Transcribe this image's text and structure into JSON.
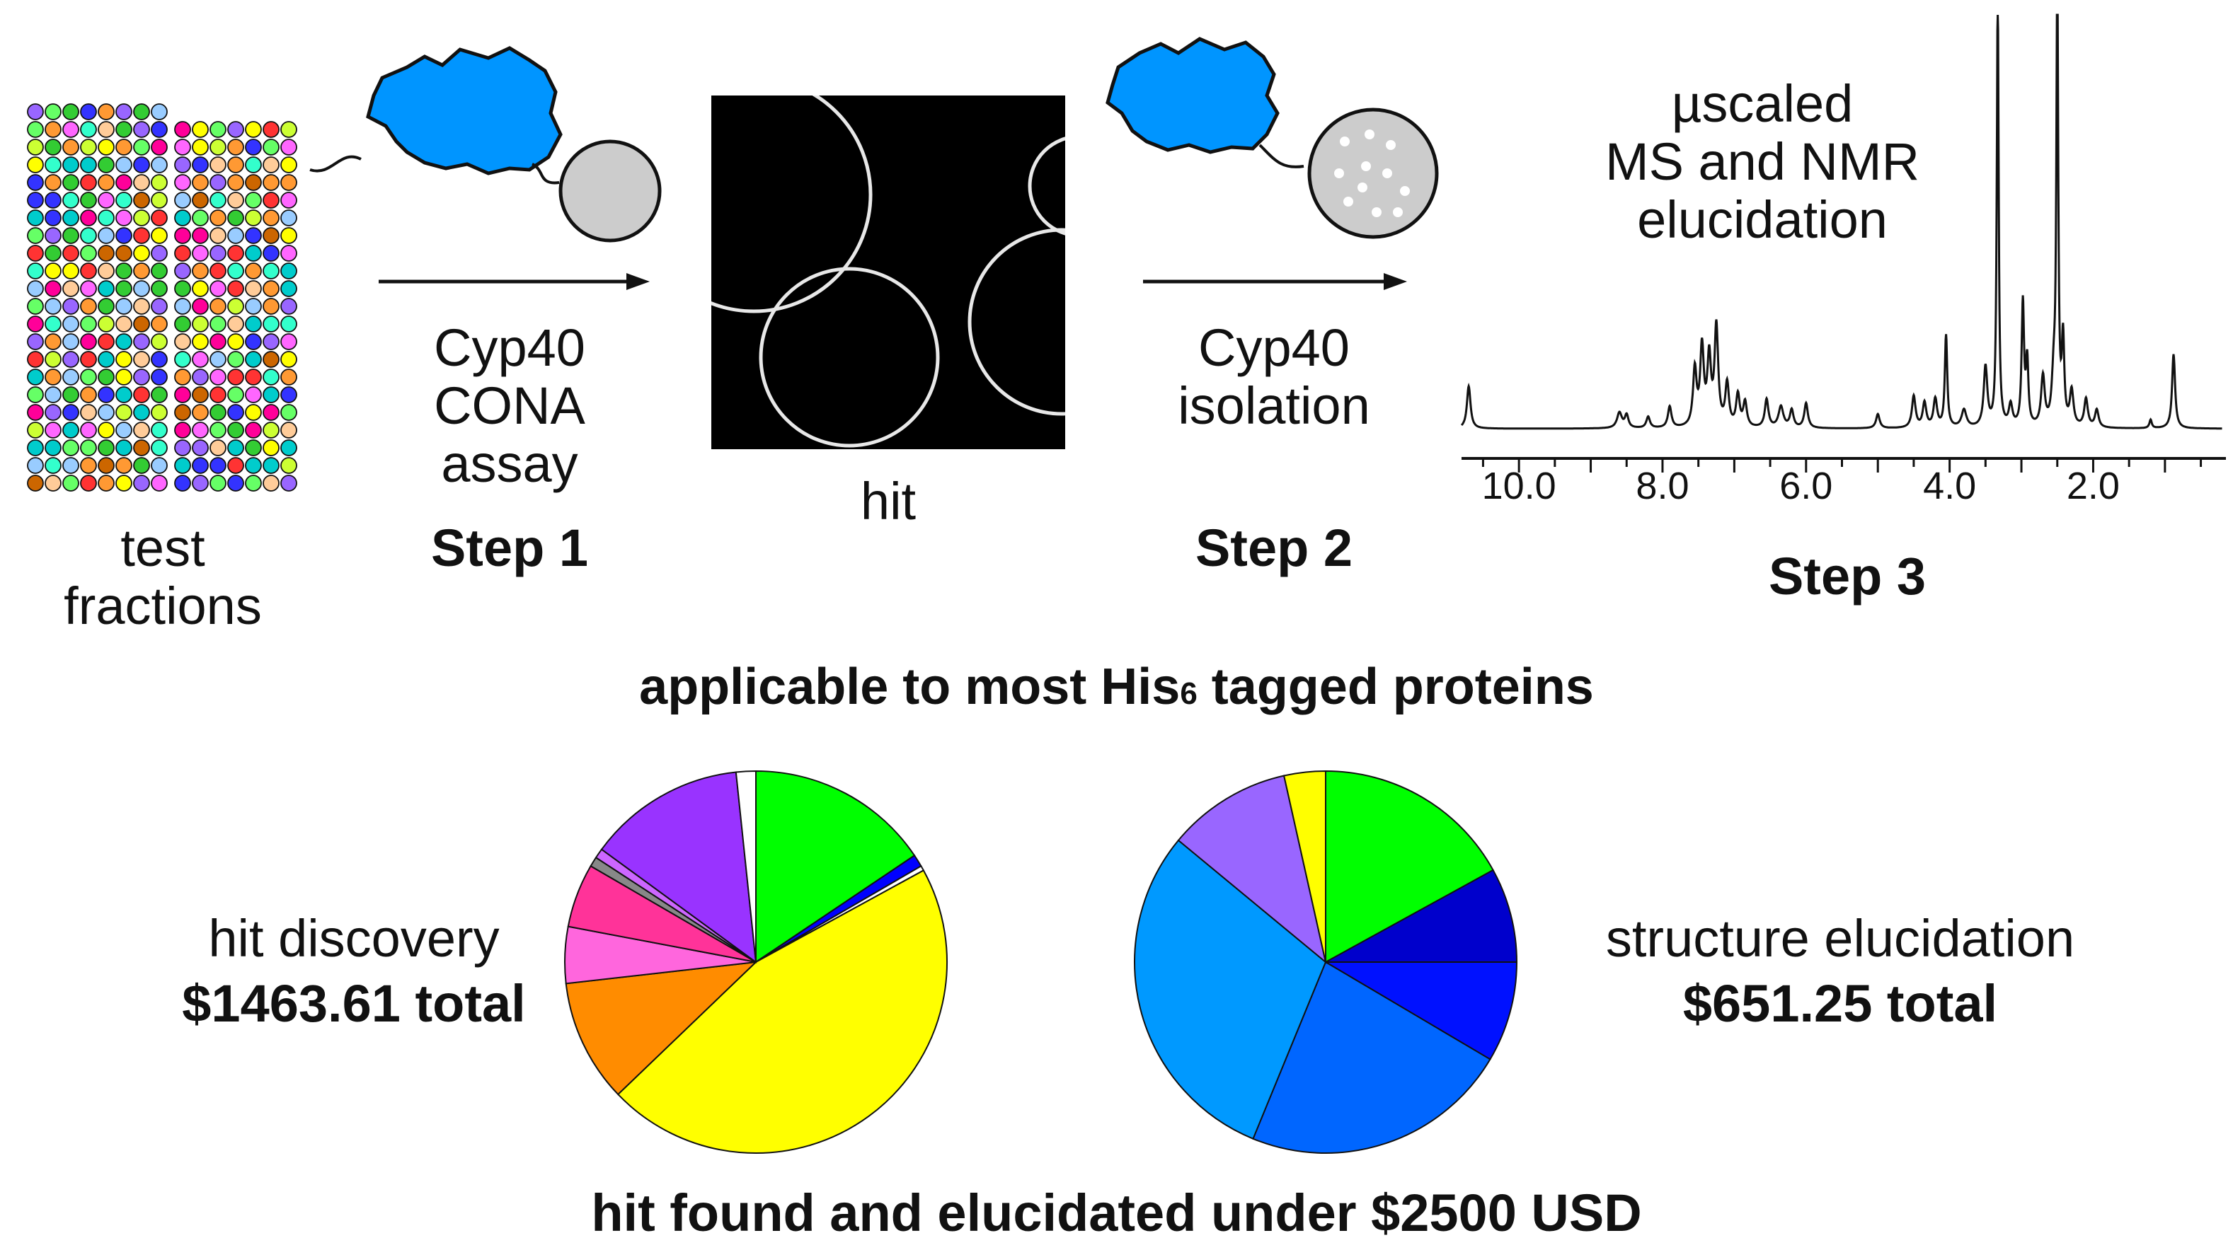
{
  "step1": {
    "fractions_label_line1": "test",
    "fractions_label_line2": "fractions",
    "assay_line1": "Cyp40",
    "assay_line2": "CONA",
    "assay_line3": "assay",
    "step_label": "Step 1"
  },
  "hit": {
    "label": "hit"
  },
  "step2": {
    "line1": "Cyp40",
    "line2": "isolation",
    "step_label": "Step 2"
  },
  "step3": {
    "line1": "µscaled",
    "line2": "MS and NMR",
    "line3": "elucidation",
    "step_label": "Step 3",
    "nmr_ticks": [
      "10.0",
      "8.0",
      "6.0",
      "4.0",
      "2.0"
    ]
  },
  "banner": {
    "applicable_prefix": "applicable to most His",
    "applicable_sub": "6",
    "applicable_suffix": " tagged proteins",
    "footer": "hit found and elucidated under $2500 USD"
  },
  "costs": {
    "hit_discovery_label": "hit discovery",
    "hit_discovery_total": "$1463.61 total",
    "structure_label": "structure elucidation",
    "structure_total": "$651.25 total"
  },
  "chart_data": [
    {
      "type": "pie",
      "title": "hit discovery",
      "slices": [
        {
          "value": 15.0,
          "color": "#00ff00"
        },
        {
          "value": 1.0,
          "color": "#0000ff"
        },
        {
          "value": 0.4,
          "color": "#ffffff"
        },
        {
          "value": 44.1,
          "color": "#ffff00"
        },
        {
          "value": 10.0,
          "color": "#ff8c00"
        },
        {
          "value": 4.6,
          "color": "#ff66dd"
        },
        {
          "value": 5.2,
          "color": "#ff3399"
        },
        {
          "value": 0.8,
          "color": "#888888"
        },
        {
          "value": 0.8,
          "color": "#cc66ff"
        },
        {
          "value": 12.8,
          "color": "#9933ff"
        },
        {
          "value": 1.6,
          "color": "#ffffff"
        }
      ]
    },
    {
      "type": "pie",
      "title": "structure elucidation",
      "slices": [
        {
          "value": 17.0,
          "color": "#00ff00"
        },
        {
          "value": 8.0,
          "color": "#0000cc"
        },
        {
          "value": 8.5,
          "color": "#0011ff"
        },
        {
          "value": 22.7,
          "color": "#0066ff"
        },
        {
          "value": 29.8,
          "color": "#0099ff"
        },
        {
          "value": 10.5,
          "color": "#9966ff"
        },
        {
          "value": 3.5,
          "color": "#ffff00"
        }
      ]
    }
  ],
  "palette": {
    "protein_blue": "#0095ff",
    "bead_gray": "#cccccc",
    "dot_colors": [
      "#ff3333",
      "#33cc33",
      "#ffff00",
      "#3333ff",
      "#ff66ff",
      "#00cccc",
      "#ff9933",
      "#9966ff",
      "#66ff66",
      "#ffcc99",
      "#ff0099",
      "#33ffcc",
      "#cc6600",
      "#99ccff",
      "#ccff33"
    ]
  }
}
